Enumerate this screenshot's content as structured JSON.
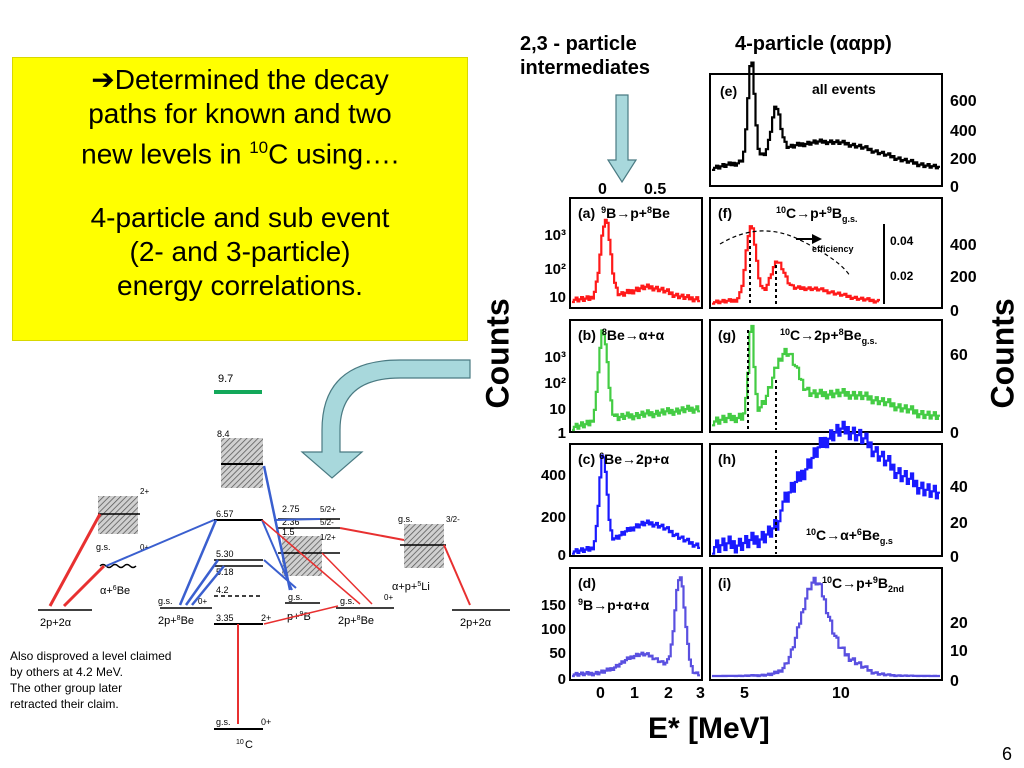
{
  "summary": {
    "line1_arrow": "➔",
    "line1": "Determined the decay",
    "line2": "paths for known and two",
    "line3_pre": "new levels in ",
    "line3_sup": "10",
    "line3_post": "C using….",
    "line4": "4-particle and sub event",
    "line5": "(2- and 3-particle)",
    "line6": "energy correlations."
  },
  "headers": {
    "left_line1": "2,3 - particle",
    "left_line2": "intermediates",
    "right": "4-particle (ααpp)"
  },
  "counts_label": "Counts",
  "xaxis_label": "E* [MeV]",
  "note": {
    "line1": "Also disproved a level claimed",
    "line2": "by others at 4.2 MeV.",
    "line3": "The other group later",
    "line4": "retracted their claim."
  },
  "page_number": "6",
  "colors": {
    "red": "#ff1a1a",
    "green": "#44cc44",
    "blue": "#1a1aff",
    "violet": "#5a50e0",
    "black": "#000000",
    "arrow": "#a8d8dc",
    "yellow": "#ffff00",
    "decay_green": "#13a85a"
  },
  "diagram": {
    "top_level": "9.7",
    "levels_10c": [
      "8.4",
      "6.57",
      "5.30",
      "5.18",
      "4.2",
      "3.35",
      "g.s."
    ],
    "spins_10c": [
      "2+",
      "0+"
    ],
    "b9_levels": [
      "2.75",
      "2.36",
      "1.5"
    ],
    "b9_spins": [
      "5/2+",
      "5/2-",
      "1/2+"
    ],
    "be6": {
      "spin_top": "2+",
      "gs": "g.s.",
      "spin_gs": "0+",
      "label_pre": "α+",
      "label_sup": "6",
      "label_post": "Be"
    },
    "li5": {
      "gs": "g.s.",
      "spin": "3/2-",
      "label_pre": "α+p+",
      "label_sup": "5",
      "label_post": "Li"
    },
    "be8_a": {
      "gs": "g.s.",
      "spin": "0+",
      "label_pre": "2p+",
      "label_sup": "8",
      "label_post": "Be"
    },
    "b9": {
      "gs": "g.s.",
      "label_pre": "p+",
      "label_sup": "9",
      "label_post": "B"
    },
    "be8_b": {
      "gs": "g.s.",
      "spin": "0+",
      "label_pre": "2p+",
      "label_sup": "8",
      "label_post": "Be"
    },
    "final_left": "2p+2α",
    "final_right": "2p+2α",
    "c10_pre_sup": "10",
    "c10_post": "C"
  },
  "panels": [
    {
      "tag": "(a)",
      "title_sup": "9",
      "title_pre": "",
      "title_mid": "B→p+",
      "title_sup2": "8",
      "title_post": "Be",
      "color": "red"
    },
    {
      "tag": "(b)",
      "title_sup": "8",
      "title_pre": "",
      "title_mid": "Be→α+α",
      "title_sup2": "",
      "title_post": "",
      "color": "green"
    },
    {
      "tag": "(c)",
      "title_sup": "6",
      "title_pre": "",
      "title_mid": "Be→2p+α",
      "title_sup2": "",
      "title_post": "",
      "color": "blue"
    },
    {
      "tag": "(d)",
      "title_sup": "9",
      "title_pre": "",
      "title_mid": "B→p+α+α",
      "title_sup2": "",
      "title_post": "",
      "color": "violet"
    },
    {
      "tag": "(e)",
      "title": "all events",
      "color": "black"
    },
    {
      "tag": "(f)",
      "title_sup": "10",
      "title_mid": "C→p+",
      "title_sup2": "9",
      "title_post": "B",
      "title_sub": "g.s.",
      "color": "red",
      "efficiency_label": "efficiency",
      "eff_ticks": [
        "0.04",
        "0.02"
      ]
    },
    {
      "tag": "(g)",
      "title_sup": "10",
      "title_mid": "C→2p+",
      "title_sup2": "8",
      "title_post": "Be",
      "title_sub": "g.s.",
      "color": "green"
    },
    {
      "tag": "(h)",
      "title_sup": "10",
      "title_mid": "C→α+",
      "title_sup2": "6",
      "title_post": "Be",
      "title_sub": "g.s",
      "color": "blue"
    },
    {
      "tag": "(i)",
      "title_sup": "10",
      "title_mid": "C→p+",
      "title_sup2": "9",
      "title_post": "B",
      "title_sub": "2nd",
      "color": "violet"
    }
  ],
  "axes": {
    "left_top_ticks": [
      "0",
      "0.5"
    ],
    "left_bottom_ticks": [
      "0",
      "1",
      "2",
      "3"
    ],
    "right_bottom_ticks": [
      "5",
      "10"
    ],
    "a_yticks": [
      "10³",
      "10²",
      "10"
    ],
    "b_yticks": [
      "10³",
      "10²",
      "10",
      "1"
    ],
    "c_yticks": [
      "400",
      "200",
      "0"
    ],
    "d_yticks": [
      "150",
      "100",
      "50",
      "0"
    ],
    "e_yticks": [
      "600",
      "400",
      "200",
      "0"
    ],
    "f_yticks": [
      "400",
      "200",
      "0"
    ],
    "g_yticks": [
      "60",
      "0"
    ],
    "h_yticks": [
      "40",
      "20",
      "0"
    ],
    "i_yticks": [
      "20",
      "10",
      "0"
    ]
  }
}
